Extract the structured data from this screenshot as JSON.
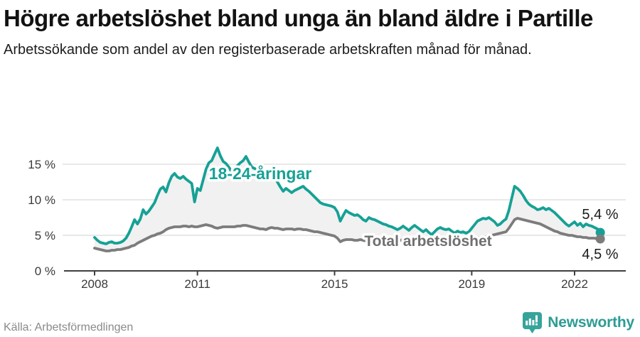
{
  "header": {
    "title": "Högre arbetslöshet bland unga än bland äldre i Partille",
    "subtitle": "Arbetssökande som andel av den registerbaserade arbetskraften månad för månad."
  },
  "footer": {
    "source": "Källa: Arbetsförmedlingen",
    "brand": "Newsworthy"
  },
  "colors": {
    "youth_line": "#16a195",
    "total_line": "#7c7c7c",
    "total_label": "#6f6f6f",
    "band_fill": "#f1f1f1",
    "grid": "#dadada",
    "axis": "#3f3f3f",
    "end_label": "#1a1a1a",
    "brand_teal": "#35a49b"
  },
  "chart_data": {
    "type": "line",
    "title": "Högre arbetslöshet bland unga än bland äldre i Partille",
    "xlabel": "",
    "ylabel": "",
    "x_start_year": 2008,
    "x_step_months": 1,
    "ylim": [
      0,
      17.5
    ],
    "grid": "horizontal",
    "legend_position": "inline-annotations",
    "band_between_series": true,
    "x_ticks": [
      {
        "label": "2008",
        "year": 2008
      },
      {
        "label": "2011",
        "year": 2011
      },
      {
        "label": "2015",
        "year": 2015
      },
      {
        "label": "2019",
        "year": 2019
      },
      {
        "label": "2022",
        "year": 2022
      }
    ],
    "y_ticks": [
      {
        "label": "0 %",
        "value": 0
      },
      {
        "label": "5 %",
        "value": 5
      },
      {
        "label": "10 %",
        "value": 10
      },
      {
        "label": "15 %",
        "value": 15
      }
    ],
    "series": [
      {
        "name": "18-24-åringar",
        "color": "#16a195",
        "end_label": "5,4 %",
        "end_value": 5.4,
        "values": [
          4.7,
          4.3,
          4.0,
          3.9,
          3.8,
          4.0,
          4.1,
          3.9,
          3.9,
          4.0,
          4.2,
          4.6,
          5.3,
          6.2,
          7.2,
          6.6,
          7.3,
          8.6,
          8.0,
          8.4,
          9.0,
          9.6,
          10.6,
          11.5,
          11.8,
          11.1,
          12.4,
          13.3,
          13.7,
          13.2,
          13.0,
          13.3,
          12.9,
          12.6,
          12.3,
          9.7,
          11.6,
          11.3,
          12.8,
          14.3,
          15.2,
          15.5,
          16.4,
          17.3,
          16.2,
          15.4,
          15.1,
          14.6,
          13.9,
          14.3,
          14.8,
          15.2,
          15.5,
          16.1,
          15.3,
          14.6,
          14.4,
          14.2,
          14.0,
          13.5,
          13.2,
          13.6,
          13.8,
          13.1,
          12.5,
          11.8,
          11.2,
          11.6,
          11.3,
          11.0,
          11.3,
          11.5,
          11.7,
          11.9,
          11.5,
          11.2,
          10.8,
          10.4,
          10.0,
          9.6,
          9.4,
          9.3,
          9.2,
          9.1,
          8.9,
          8.3,
          7.0,
          7.8,
          8.5,
          8.2,
          8.0,
          7.8,
          7.9,
          7.6,
          7.2,
          7.0,
          7.5,
          7.3,
          7.2,
          7.0,
          6.8,
          6.6,
          6.5,
          6.3,
          6.2,
          6.0,
          5.8,
          6.0,
          6.3,
          6.0,
          5.7,
          6.1,
          6.4,
          6.1,
          5.8,
          5.5,
          5.8,
          5.4,
          5.1,
          5.5,
          5.9,
          6.1,
          5.9,
          5.8,
          5.9,
          5.6,
          5.3,
          5.6,
          5.4,
          5.5,
          5.3,
          5.5,
          6.0,
          6.5,
          7.0,
          7.2,
          7.4,
          7.3,
          7.5,
          7.2,
          6.9,
          6.4,
          6.6,
          7.0,
          7.3,
          8.5,
          10.2,
          11.9,
          11.6,
          11.2,
          10.6,
          9.9,
          9.4,
          9.1,
          8.9,
          8.6,
          8.7,
          8.9,
          8.6,
          8.8,
          8.5,
          8.2,
          7.8,
          7.4,
          7.0,
          6.6,
          6.3,
          6.6,
          6.9,
          6.4,
          6.7,
          6.2,
          6.6,
          6.4,
          6.3,
          6.1,
          5.9,
          5.4
        ]
      },
      {
        "name": "Total arbetslöshet",
        "color": "#7c7c7c",
        "end_label": "4,5 %",
        "end_value": 4.5,
        "values": [
          3.2,
          3.1,
          3.0,
          2.9,
          2.8,
          2.8,
          2.9,
          2.9,
          3.0,
          3.0,
          3.1,
          3.2,
          3.3,
          3.5,
          3.6,
          3.9,
          4.1,
          4.3,
          4.5,
          4.7,
          4.9,
          5.0,
          5.2,
          5.3,
          5.5,
          5.8,
          6.0,
          6.1,
          6.2,
          6.2,
          6.2,
          6.3,
          6.3,
          6.2,
          6.3,
          6.2,
          6.2,
          6.3,
          6.4,
          6.5,
          6.4,
          6.3,
          6.1,
          6.0,
          6.1,
          6.2,
          6.2,
          6.2,
          6.2,
          6.2,
          6.3,
          6.3,
          6.4,
          6.4,
          6.3,
          6.2,
          6.1,
          6.0,
          5.9,
          5.9,
          5.8,
          6.0,
          6.1,
          6.0,
          6.0,
          5.9,
          5.8,
          5.9,
          5.9,
          5.9,
          5.8,
          5.9,
          5.9,
          5.8,
          5.8,
          5.7,
          5.6,
          5.5,
          5.5,
          5.4,
          5.3,
          5.2,
          5.1,
          5.0,
          4.9,
          4.6,
          4.1,
          4.3,
          4.4,
          4.4,
          4.4,
          4.3,
          4.3,
          4.4,
          4.3,
          4.2,
          4.3,
          4.3,
          4.4,
          4.4,
          4.3,
          4.3,
          4.2,
          4.3,
          4.3,
          4.2,
          4.2,
          4.3,
          4.4,
          4.3,
          4.3,
          4.2,
          4.2,
          4.3,
          4.3,
          4.2,
          4.2,
          4.1,
          4.1,
          4.2,
          4.3,
          4.3,
          4.2,
          4.2,
          4.2,
          4.1,
          4.1,
          4.2,
          4.2,
          4.3,
          4.3,
          4.4,
          4.5,
          4.6,
          4.6,
          4.7,
          4.7,
          4.8,
          4.9,
          5.0,
          5.1,
          5.2,
          5.3,
          5.4,
          5.5,
          6.0,
          6.6,
          7.2,
          7.4,
          7.3,
          7.2,
          7.1,
          7.0,
          6.9,
          6.8,
          6.7,
          6.6,
          6.4,
          6.2,
          6.0,
          5.8,
          5.6,
          5.5,
          5.3,
          5.2,
          5.1,
          5.0,
          5.0,
          4.9,
          4.8,
          4.8,
          4.7,
          4.7,
          4.6,
          4.6,
          4.6,
          4.5,
          4.5
        ]
      }
    ]
  }
}
